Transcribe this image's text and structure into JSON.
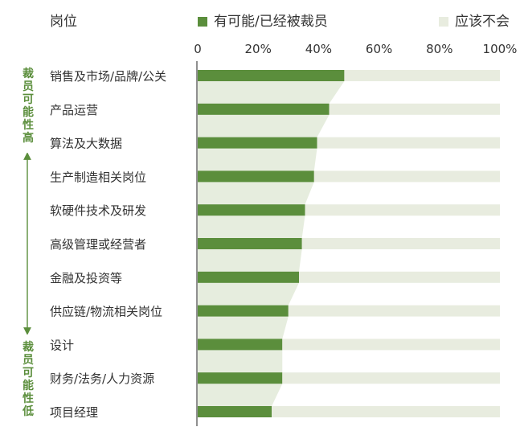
{
  "header": {
    "category_label": "岗位",
    "legend": [
      {
        "label": "有可能/已经被裁员",
        "color": "#5b8e3c"
      },
      {
        "label": "应该不会",
        "color": "#e8ecdf"
      }
    ]
  },
  "side": {
    "top_label": "裁员可能性高",
    "bottom_label": "裁员可能性低",
    "color": "#5b8e3c"
  },
  "chart_data": {
    "type": "bar",
    "orientation": "horizontal",
    "stacked": true,
    "categories": [
      "销售及市场/品牌/公关",
      "产品运营",
      "算法及大数据",
      "生产制造相关岗位",
      "软硬件技术及研发",
      "高级管理或经营者",
      "金融及投资等",
      "供应链/物流相关岗位",
      "设计",
      "财务/法务/人力资源",
      "项目经理"
    ],
    "series": [
      {
        "name": "有可能/已经被裁员",
        "color": "#5b8e3c",
        "values": [
          48.5,
          43.5,
          39.5,
          38.5,
          35.5,
          34.5,
          33.5,
          30,
          28,
          28,
          24.5
        ]
      },
      {
        "name": "应该不会",
        "color": "#e8ecdf",
        "values": [
          51.5,
          56.5,
          60.5,
          61.5,
          64.5,
          65.5,
          66.5,
          70,
          72,
          72,
          75.5
        ]
      }
    ],
    "xticks": [
      "0",
      "20%",
      "40%",
      "60%",
      "80%",
      "100%"
    ],
    "xlim": [
      0,
      100
    ],
    "grid": false,
    "legend_position": "top"
  }
}
